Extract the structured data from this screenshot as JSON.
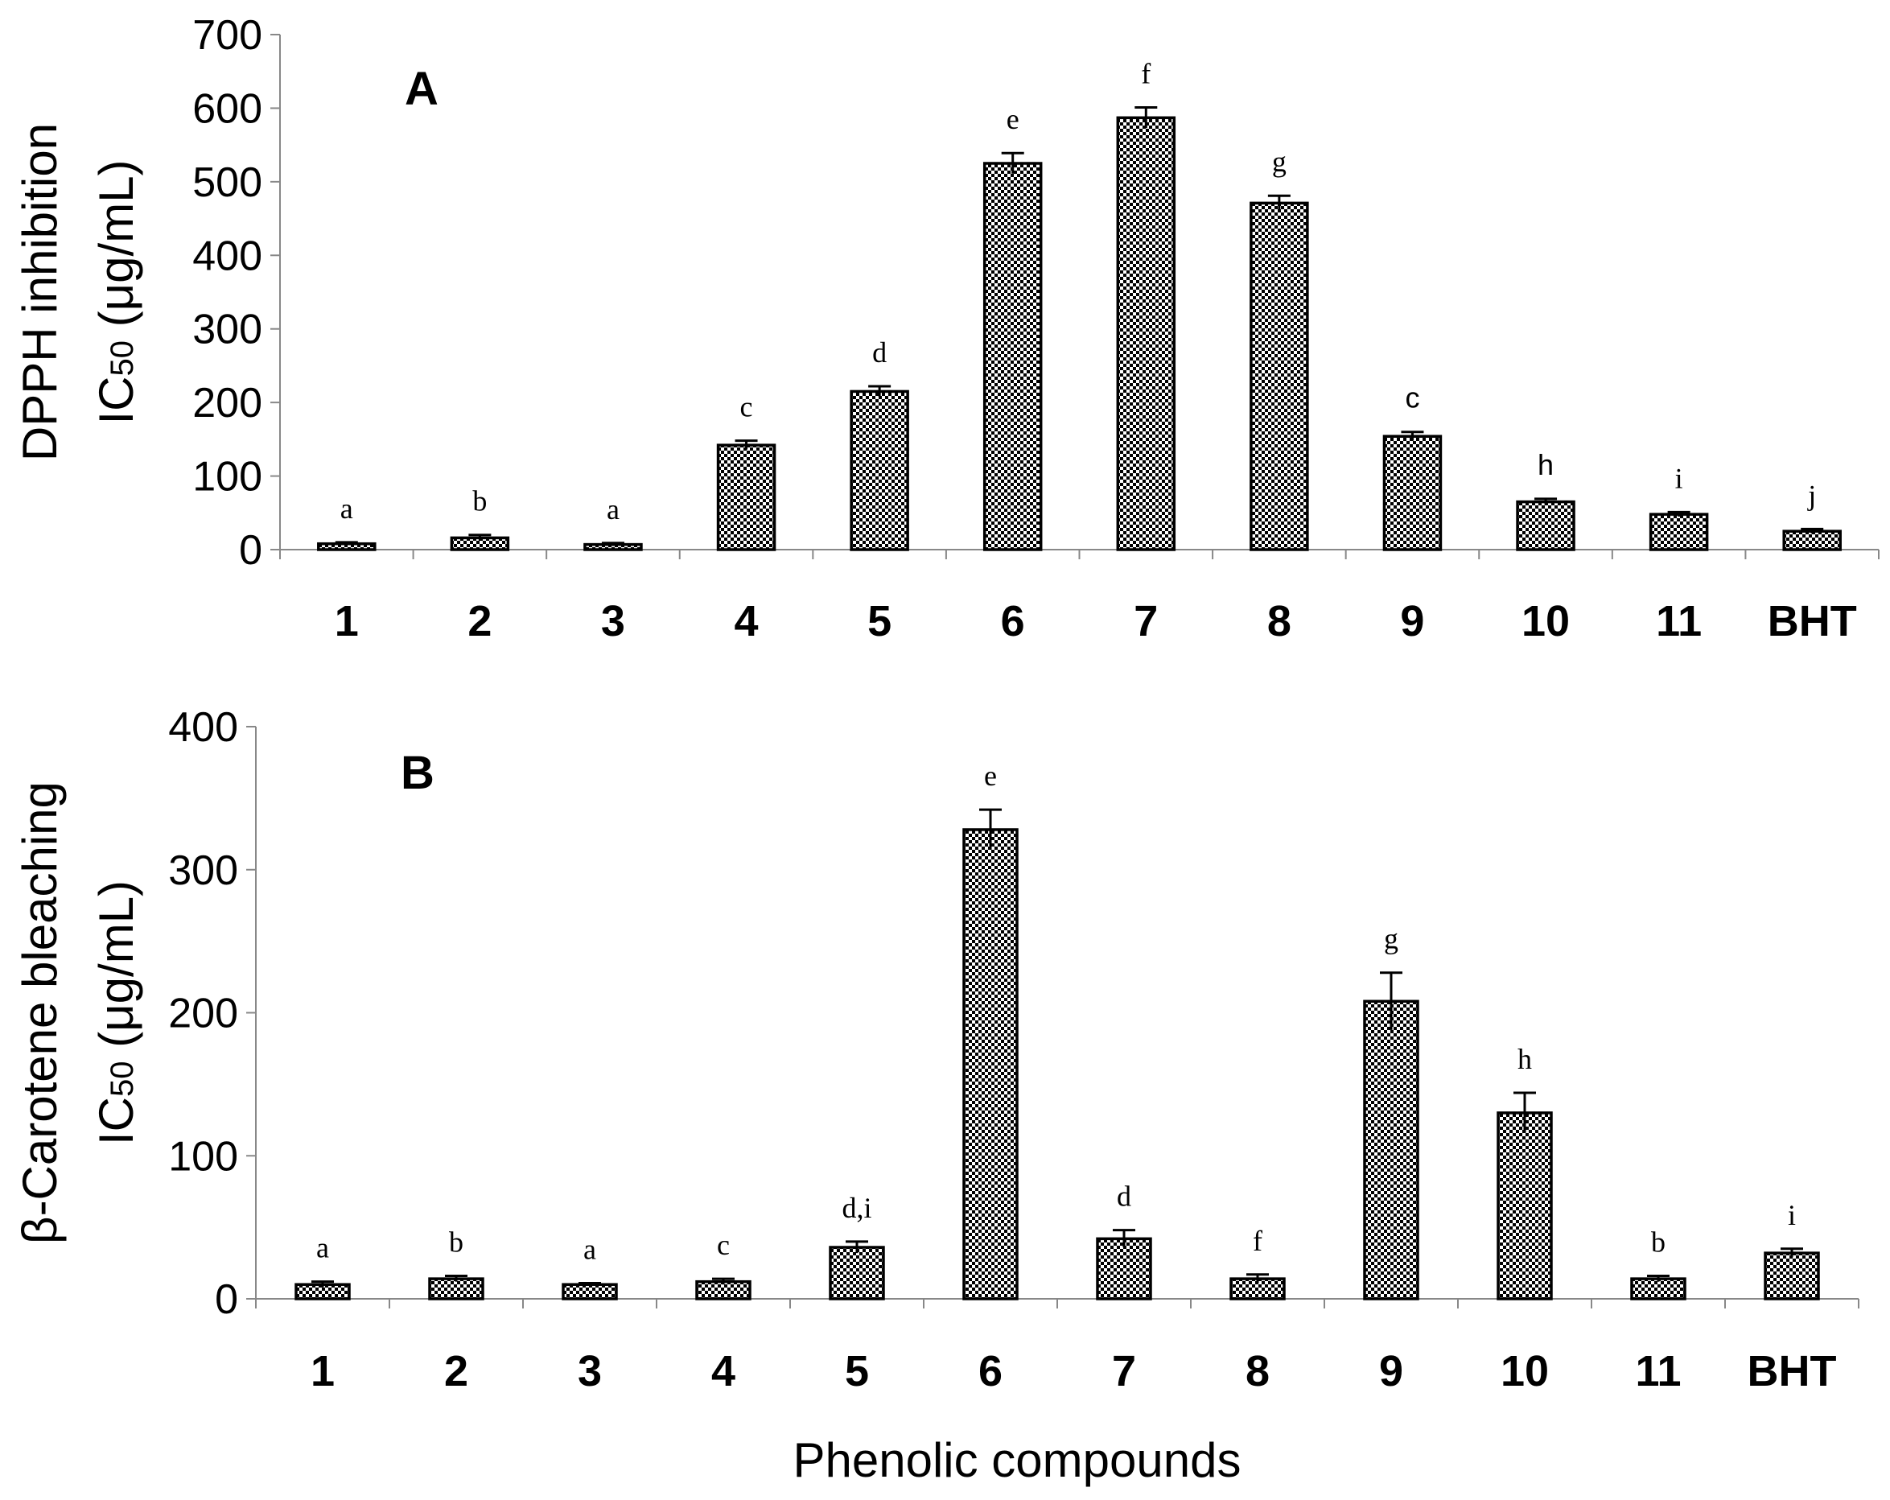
{
  "chart_data": [
    {
      "type": "bar",
      "panel": "A",
      "categories": [
        "1",
        "2",
        "3",
        "4",
        "5",
        "6",
        "7",
        "8",
        "9",
        "10",
        "11",
        "BHT"
      ],
      "values": [
        8,
        16,
        7,
        142,
        215,
        525,
        587,
        471,
        154,
        65,
        48,
        25
      ],
      "errors": [
        2,
        4,
        2,
        6,
        7,
        14,
        14,
        10,
        6,
        4,
        3,
        3
      ],
      "significance": [
        "a",
        "b",
        "a",
        "c",
        "d",
        "e",
        "f",
        "g",
        "c",
        "h",
        "i",
        "j"
      ],
      "ylabel_line1": "DPPH inhibition",
      "ylabel_line2": "IC",
      "ylabel_sub": "50",
      "ylabel_unit": " (μg/mL)",
      "ylim": [
        0,
        700
      ],
      "yticks": [
        0,
        100,
        200,
        300,
        400,
        500,
        600,
        700
      ],
      "xlabel": ""
    },
    {
      "type": "bar",
      "panel": "B",
      "categories": [
        "1",
        "2",
        "3",
        "4",
        "5",
        "6",
        "7",
        "8",
        "9",
        "10",
        "11",
        "BHT"
      ],
      "values": [
        10,
        14,
        10,
        12,
        36,
        328,
        42,
        14,
        208,
        130,
        14,
        32
      ],
      "errors": [
        2,
        2,
        1,
        2,
        4,
        14,
        6,
        3,
        20,
        14,
        2,
        3
      ],
      "significance": [
        "a",
        "b",
        "a",
        "c",
        "d,i",
        "e",
        "d",
        "f",
        "g",
        "h",
        "b",
        "i"
      ],
      "ylabel_line1": "β-Carotene bleaching",
      "ylabel_line2": "IC",
      "ylabel_sub": "50",
      "ylabel_unit": " (μg/mL)",
      "ylim": [
        0,
        400
      ],
      "yticks": [
        0,
        100,
        200,
        300,
        400
      ],
      "xlabel": "Phenolic compounds"
    }
  ],
  "colors": {
    "bar_fill_dark": "#000000",
    "bar_fill_light": "#ffffff",
    "axis": "#888888"
  }
}
